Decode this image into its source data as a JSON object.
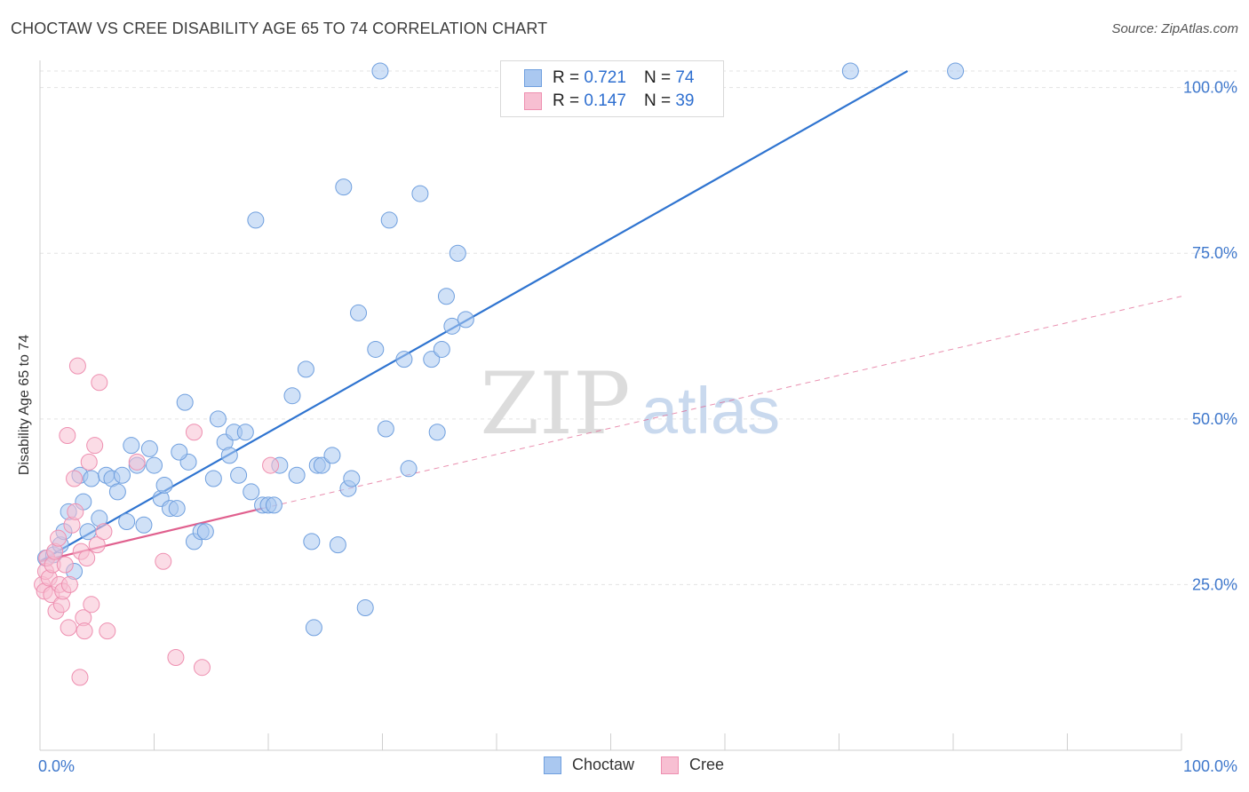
{
  "title": "CHOCTAW VS CREE DISABILITY AGE 65 TO 74 CORRELATION CHART",
  "source": "Source: ZipAtlas.com",
  "watermark": {
    "zip": "ZIP",
    "atlas": "atlas"
  },
  "legend": {
    "rows": [
      {
        "r_label": "R = ",
        "r_value": "0.721",
        "n_label": "N = ",
        "n_value": "74"
      },
      {
        "r_label": "R = ",
        "r_value": "0.147",
        "n_label": "N = ",
        "n_value": "39"
      }
    ]
  },
  "chart_data": {
    "type": "scatter",
    "title": "CHOCTAW VS CREE DISABILITY AGE 65 TO 74 CORRELATION CHART",
    "xlabel": "",
    "ylabel": "Disability Age 65 to 74",
    "xlim": [
      0,
      100
    ],
    "ylim": [
      0,
      102.5
    ],
    "x_tick_labels": [
      "0.0%",
      "100.0%"
    ],
    "y_tick_labels": [
      "25.0%",
      "50.0%",
      "75.0%",
      "100.0%"
    ],
    "y_ticks": [
      25,
      50,
      75,
      100
    ],
    "grid": true,
    "legend_position": "bottom",
    "series": [
      {
        "name": "Choctaw",
        "color": "#aac8f0",
        "edge_color": "#6f9fde",
        "line_color": "#2f74d0",
        "r": 0.721,
        "n": 74,
        "trend": {
          "x": [
            0,
            76
          ],
          "y": [
            28.5,
            102.5
          ]
        },
        "points": [
          [
            0.5,
            29
          ],
          [
            1.2,
            29.5
          ],
          [
            1.8,
            31
          ],
          [
            2.1,
            33
          ],
          [
            2.5,
            36
          ],
          [
            3.5,
            41.5
          ],
          [
            3.8,
            37.5
          ],
          [
            4.2,
            33
          ],
          [
            4.5,
            41
          ],
          [
            5.2,
            35
          ],
          [
            5.8,
            41.5
          ],
          [
            6.3,
            41
          ],
          [
            6.8,
            39
          ],
          [
            7.2,
            41.5
          ],
          [
            7.6,
            34.5
          ],
          [
            8.0,
            46
          ],
          [
            8.5,
            43
          ],
          [
            9.1,
            34
          ],
          [
            9.6,
            45.5
          ],
          [
            10.0,
            43
          ],
          [
            10.6,
            38
          ],
          [
            10.9,
            40
          ],
          [
            11.4,
            36.5
          ],
          [
            12.0,
            36.5
          ],
          [
            12.7,
            52.5
          ],
          [
            13.0,
            43.5
          ],
          [
            13.5,
            31.5
          ],
          [
            14.1,
            33
          ],
          [
            14.5,
            33
          ],
          [
            15.2,
            41
          ],
          [
            15.6,
            50
          ],
          [
            16.2,
            46.5
          ],
          [
            16.6,
            44.5
          ],
          [
            17.0,
            48
          ],
          [
            17.4,
            41.5
          ],
          [
            18.0,
            48
          ],
          [
            18.5,
            39
          ],
          [
            18.9,
            80
          ],
          [
            19.5,
            37
          ],
          [
            20.0,
            37
          ],
          [
            20.5,
            37
          ],
          [
            21.0,
            43
          ],
          [
            22.1,
            53.5
          ],
          [
            22.5,
            41.5
          ],
          [
            23.3,
            57.5
          ],
          [
            23.8,
            31.5
          ],
          [
            24.3,
            43
          ],
          [
            24.7,
            43
          ],
          [
            25.6,
            44.5
          ],
          [
            26.1,
            31
          ],
          [
            26.6,
            85
          ],
          [
            27.0,
            39.5
          ],
          [
            27.3,
            41
          ],
          [
            27.9,
            66
          ],
          [
            28.5,
            21.5
          ],
          [
            29.4,
            60.5
          ],
          [
            29.8,
            102.5
          ],
          [
            30.3,
            48.5
          ],
          [
            30.6,
            80
          ],
          [
            31.9,
            59
          ],
          [
            32.3,
            42.5
          ],
          [
            33.3,
            84
          ],
          [
            34.3,
            59
          ],
          [
            34.8,
            48
          ],
          [
            35.2,
            60.5
          ],
          [
            35.6,
            68.5
          ],
          [
            36.1,
            64
          ],
          [
            36.6,
            75
          ],
          [
            37.3,
            65
          ],
          [
            71.0,
            102.5
          ],
          [
            80.2,
            102.5
          ],
          [
            24.0,
            18.5
          ],
          [
            12.2,
            45
          ],
          [
            3.0,
            27
          ]
        ]
      },
      {
        "name": "Cree",
        "color": "#f7bfd2",
        "edge_color": "#ee8fb0",
        "line_color": "#e0608e",
        "r": 0.147,
        "n": 39,
        "trend": {
          "x": [
            0,
            19.5
          ],
          "y": [
            28.5,
            36.5
          ]
        },
        "trend_dashed": {
          "x": [
            19.5,
            100
          ],
          "y": [
            36.5,
            68.5
          ]
        },
        "points": [
          [
            0.2,
            25
          ],
          [
            0.4,
            24
          ],
          [
            0.5,
            27
          ],
          [
            0.6,
            29
          ],
          [
            0.8,
            26
          ],
          [
            1.0,
            23.5
          ],
          [
            1.1,
            28
          ],
          [
            1.3,
            30
          ],
          [
            1.4,
            21
          ],
          [
            1.6,
            32
          ],
          [
            1.7,
            25
          ],
          [
            1.9,
            22
          ],
          [
            2.0,
            24
          ],
          [
            2.2,
            28
          ],
          [
            2.4,
            47.5
          ],
          [
            2.5,
            18.5
          ],
          [
            2.6,
            25
          ],
          [
            2.8,
            34
          ],
          [
            3.0,
            41
          ],
          [
            3.1,
            36
          ],
          [
            3.3,
            58
          ],
          [
            3.5,
            11
          ],
          [
            3.6,
            30
          ],
          [
            3.8,
            20
          ],
          [
            3.9,
            18
          ],
          [
            4.1,
            29
          ],
          [
            4.3,
            43.5
          ],
          [
            4.5,
            22
          ],
          [
            4.8,
            46
          ],
          [
            5.0,
            31
          ],
          [
            5.2,
            55.5
          ],
          [
            5.6,
            33
          ],
          [
            5.9,
            18
          ],
          [
            8.5,
            43.5
          ],
          [
            10.8,
            28.5
          ],
          [
            11.9,
            14
          ],
          [
            13.5,
            48
          ],
          [
            14.2,
            12.5
          ],
          [
            20.2,
            43
          ]
        ]
      }
    ]
  },
  "bottom_legend": [
    {
      "label": "Choctaw"
    },
    {
      "label": "Cree"
    }
  ]
}
